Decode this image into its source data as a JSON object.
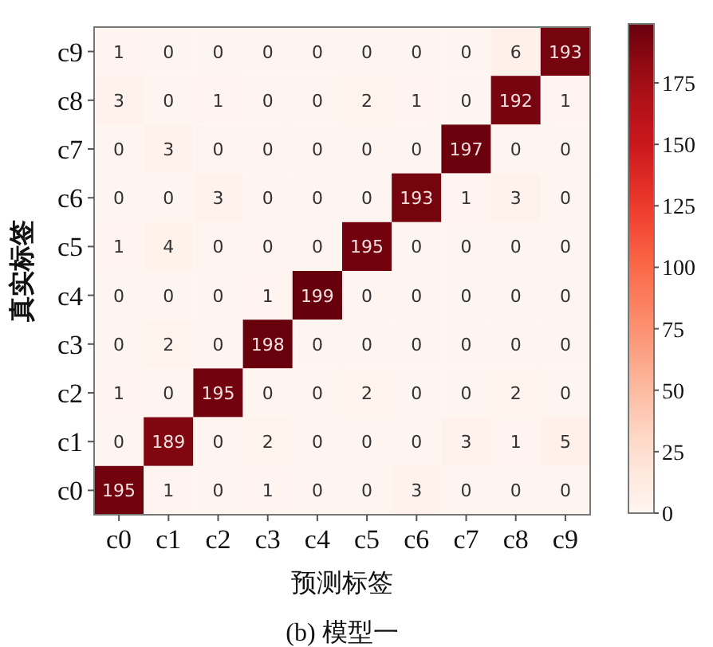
{
  "chart_data": {
    "type": "heatmap",
    "title": "(b) 模型一",
    "xlabel": "预测标签",
    "ylabel": "真实标签",
    "categories": [
      "c0",
      "c1",
      "c2",
      "c3",
      "c4",
      "c5",
      "c6",
      "c7",
      "c8",
      "c9"
    ],
    "y_categories": [
      "c9",
      "c8",
      "c7",
      "c6",
      "c5",
      "c4",
      "c3",
      "c2",
      "c1",
      "c0"
    ],
    "cells": [
      [
        1,
        0,
        0,
        0,
        0,
        0,
        0,
        0,
        6,
        193
      ],
      [
        3,
        0,
        1,
        0,
        0,
        2,
        1,
        0,
        192,
        1
      ],
      [
        0,
        3,
        0,
        0,
        0,
        0,
        0,
        197,
        0,
        0
      ],
      [
        0,
        0,
        3,
        0,
        0,
        0,
        193,
        1,
        3,
        0
      ],
      [
        1,
        4,
        0,
        0,
        0,
        195,
        0,
        0,
        0,
        0
      ],
      [
        0,
        0,
        0,
        1,
        199,
        0,
        0,
        0,
        0,
        0
      ],
      [
        0,
        2,
        0,
        198,
        0,
        0,
        0,
        0,
        0,
        0
      ],
      [
        1,
        0,
        195,
        0,
        0,
        2,
        0,
        0,
        2,
        0
      ],
      [
        0,
        189,
        0,
        2,
        0,
        0,
        0,
        3,
        1,
        5
      ],
      [
        195,
        1,
        0,
        1,
        0,
        0,
        3,
        0,
        0,
        0
      ]
    ],
    "data_labels": true,
    "clim": [
      0,
      199
    ],
    "cticks": [
      0,
      25,
      50,
      75,
      100,
      125,
      150,
      175
    ]
  }
}
